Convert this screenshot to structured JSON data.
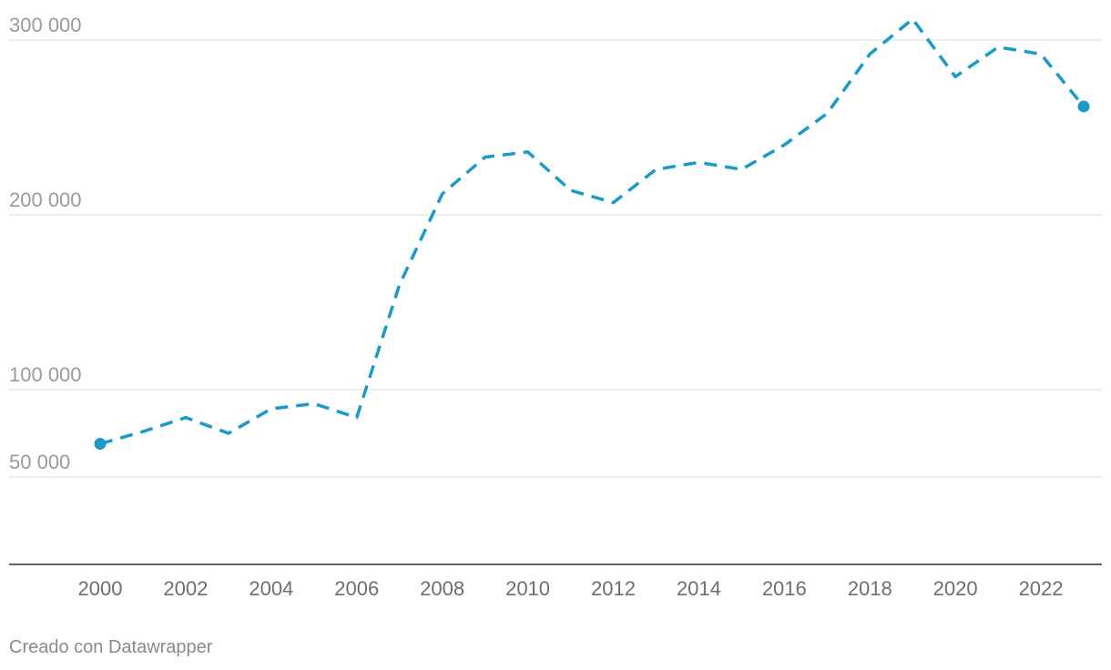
{
  "chart_data": {
    "type": "line",
    "x": [
      2000,
      2001,
      2002,
      2003,
      2004,
      2005,
      2006,
      2007,
      2008,
      2009,
      2010,
      2011,
      2012,
      2013,
      2014,
      2015,
      2016,
      2017,
      2018,
      2019,
      2020,
      2021,
      2022,
      2023
    ],
    "series": [
      {
        "name": "",
        "values": [
          69000,
          76000,
          84000,
          75000,
          89000,
          92000,
          84000,
          160000,
          212000,
          233000,
          236000,
          214000,
          207000,
          226000,
          230000,
          226000,
          240000,
          258000,
          292000,
          312000,
          279000,
          296000,
          292000,
          262000
        ],
        "color": "#1a9bc7",
        "style": "dashed",
        "endpoint_markers": true
      }
    ],
    "x_ticks": [
      "2000",
      "2002",
      "2004",
      "2006",
      "2008",
      "2010",
      "2012",
      "2014",
      "2016",
      "2018",
      "2020",
      "2022"
    ],
    "y_ticks": [
      {
        "value": 300000,
        "label": "300 000"
      },
      {
        "value": 200000,
        "label": "200 000"
      },
      {
        "value": 100000,
        "label": "100 000"
      },
      {
        "value": 50000,
        "label": "50 000"
      }
    ],
    "title": "",
    "xlabel": "",
    "ylabel": "",
    "ylim": [
      0,
      300000
    ],
    "xlim": [
      2000,
      2023
    ],
    "grid": true,
    "legend": "none"
  },
  "footer": {
    "credit": "Creado con Datawrapper"
  }
}
